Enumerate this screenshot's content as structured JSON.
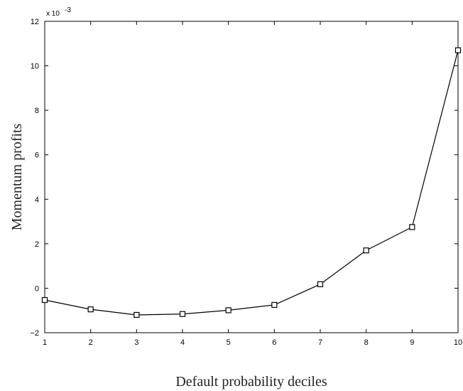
{
  "chart_data": {
    "type": "line",
    "title": "",
    "xlabel": "Default probability deciles",
    "ylabel": "Momentum profits",
    "y_scale_label": "x 10",
    "y_scale_exponent": "-3",
    "xlim": [
      1,
      10
    ],
    "ylim": [
      -2,
      12
    ],
    "x_ticks": [
      1,
      2,
      3,
      4,
      5,
      6,
      7,
      8,
      9,
      10
    ],
    "y_ticks": [
      -2,
      0,
      2,
      4,
      6,
      8,
      10,
      12
    ],
    "x_tick_labels": [
      "1",
      "2",
      "3",
      "4",
      "5",
      "6",
      "7",
      "8",
      "9",
      "10"
    ],
    "y_tick_labels": [
      "−2",
      "0",
      "2",
      "4",
      "6",
      "8",
      "10",
      "12"
    ],
    "grid": false,
    "marker": "square",
    "line_color": "#000000",
    "series": [
      {
        "x": [
          1,
          2,
          3,
          4,
          5,
          6,
          7,
          8,
          9,
          10
        ],
        "values": [
          -0.53,
          -0.95,
          -1.2,
          -1.16,
          -0.99,
          -0.75,
          0.18,
          1.7,
          2.75,
          10.7
        ]
      }
    ]
  }
}
